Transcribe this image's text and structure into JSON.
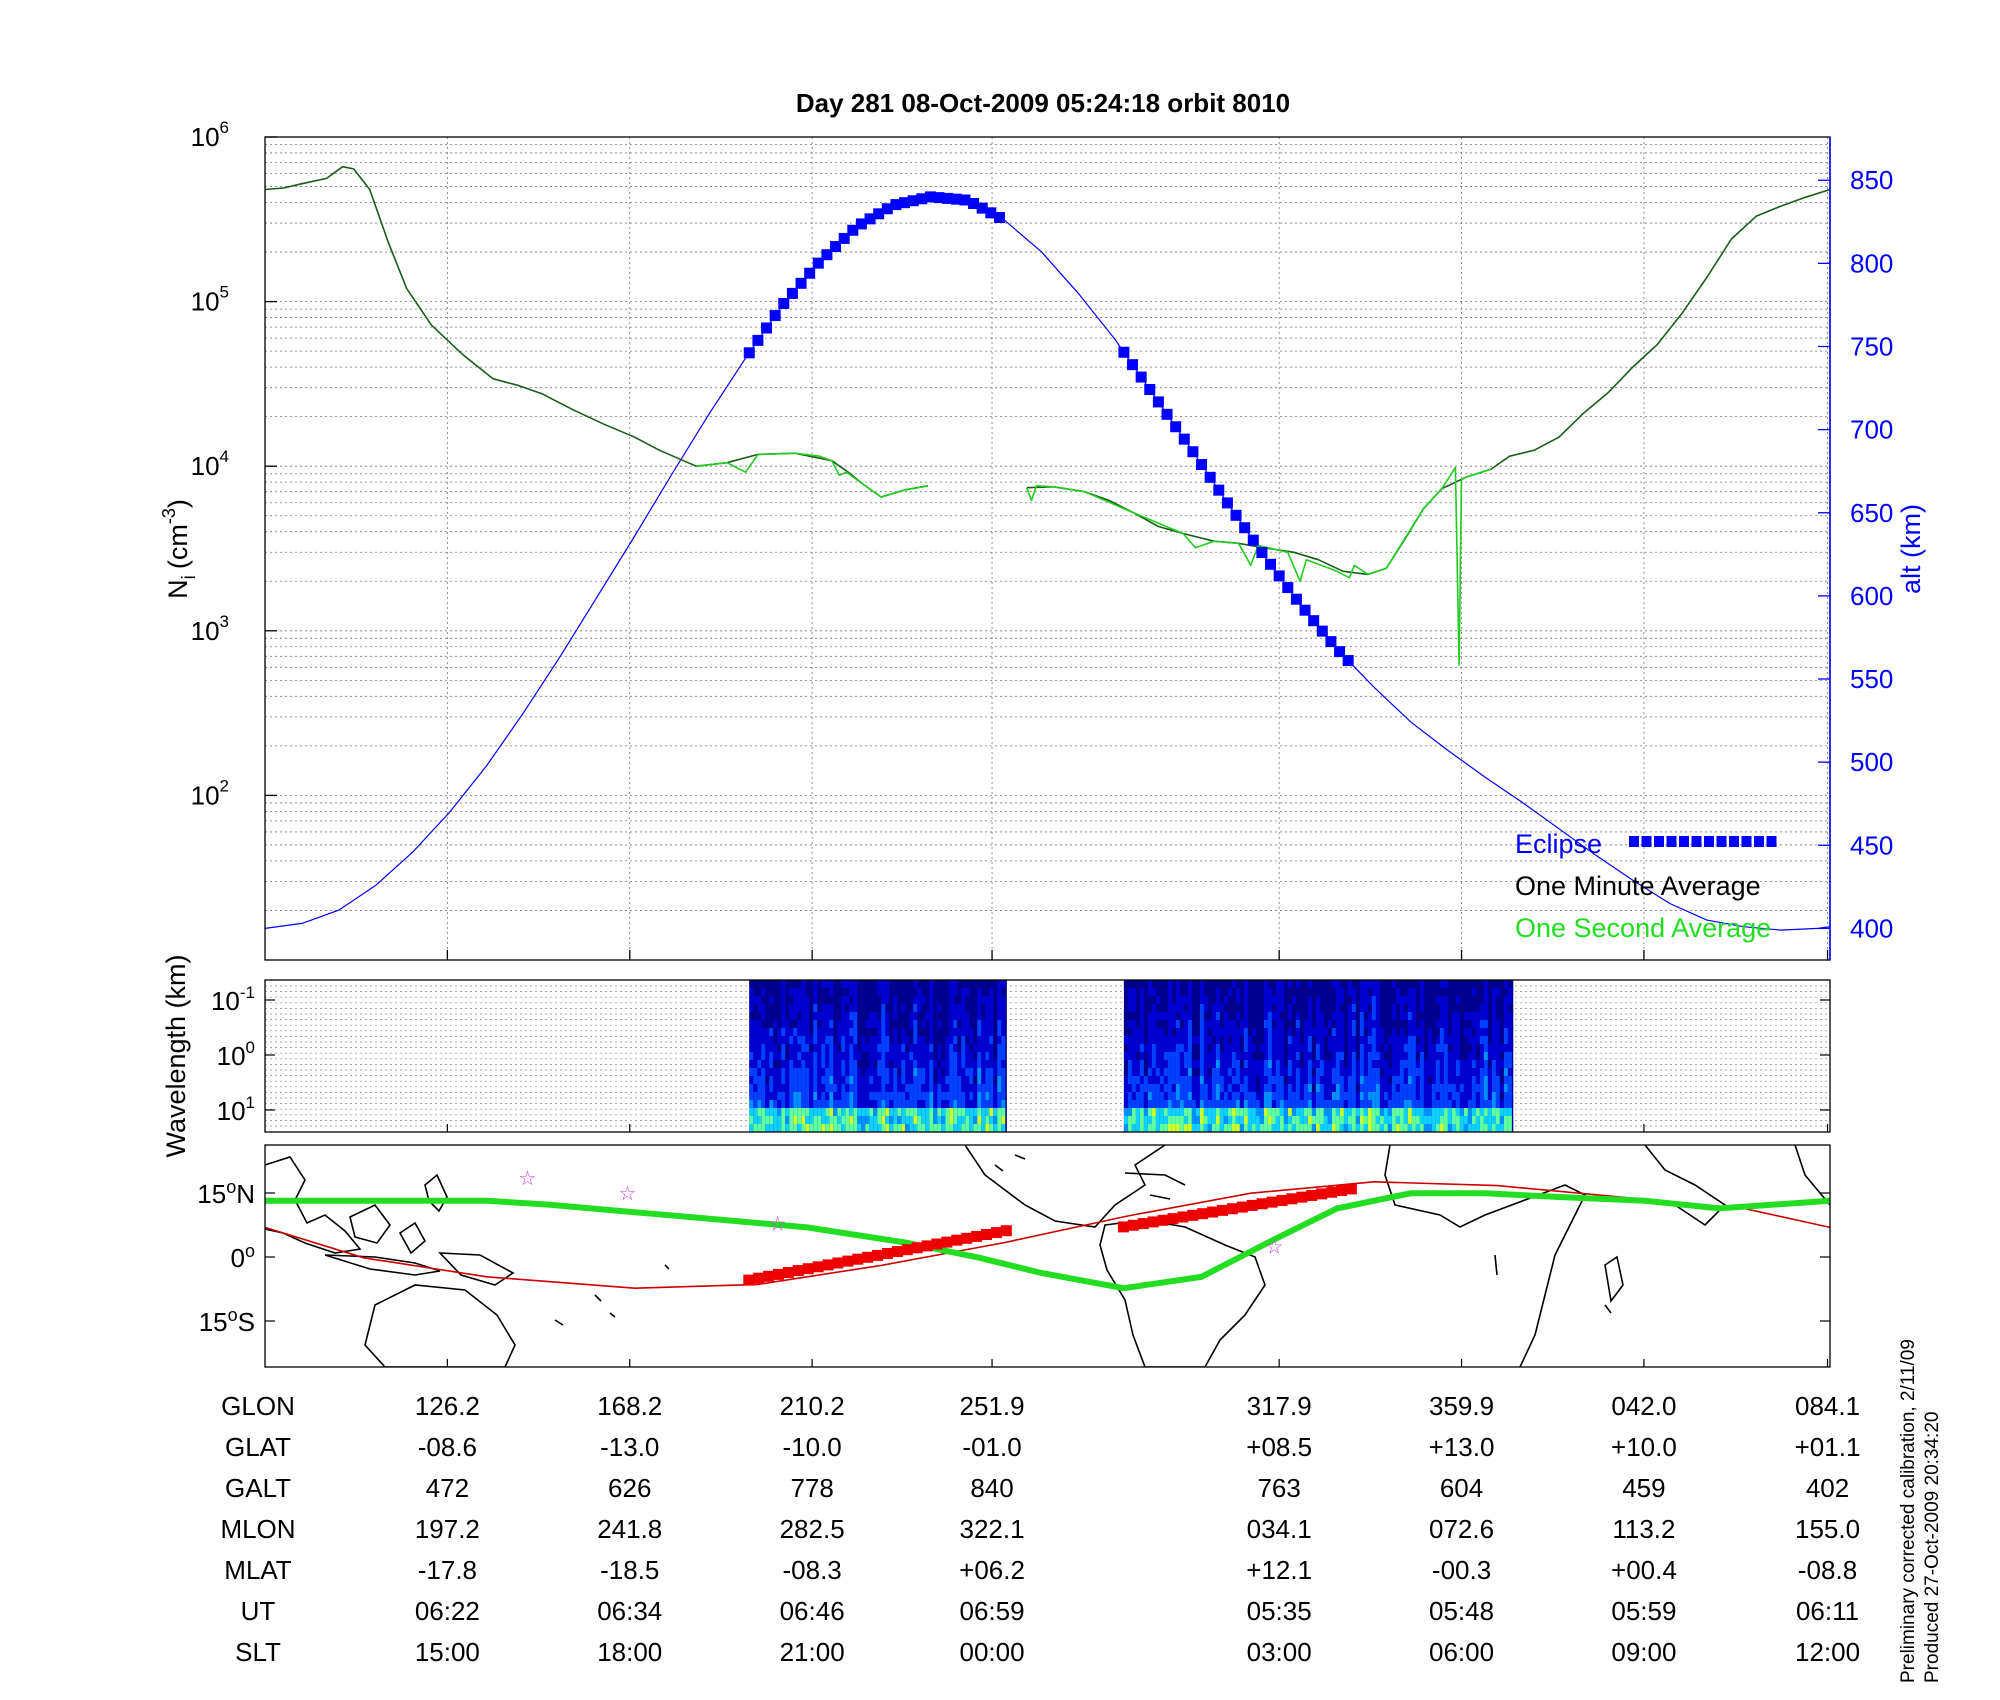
{
  "title": "Day 281  08-Oct-2009 05:24:18   orbit 8010",
  "colors": {
    "one_minute": "#1a5c1a",
    "one_second": "#22cc22",
    "altitude": "#0000ff",
    "eclipse": "#0000ff",
    "track_map": "#22dd22",
    "dip_equator": "#cc0000",
    "map_eclipse": "#ee0000",
    "stars": "#cc44cc"
  },
  "chart_data": [
    {
      "type": "line",
      "name": "density",
      "ylabel": "N_i (cm^-3)",
      "ylabel_main": "N",
      "ylabel_sub": "i",
      "ylabel_unit": "(cm",
      "ylabel_exp": "-3",
      "ylabel_close": ")",
      "y2label": "alt (km)",
      "y_scale": "log",
      "ylim": [
        10,
        1000000
      ],
      "y_ticks": [
        {
          "base": "10",
          "exp": "2",
          "value": 100
        },
        {
          "base": "10",
          "exp": "3",
          "value": 1000
        },
        {
          "base": "10",
          "exp": "4",
          "value": 10000
        },
        {
          "base": "10",
          "exp": "5",
          "value": 100000
        },
        {
          "base": "10",
          "exp": "6",
          "value": 1000000
        }
      ],
      "y2lim": [
        381,
        876
      ],
      "y2_ticks": [
        "400",
        "450",
        "500",
        "550",
        "600",
        "650",
        "700",
        "750",
        "800",
        "850"
      ],
      "legend": {
        "placement": "bottom-right",
        "eclipse": "Eclipse",
        "one_minute": "One Minute Average",
        "one_second": "One Second Average"
      },
      "series": [
        {
          "name": "One Minute Average",
          "segments": [
            [
              [
                0,
                480000
              ],
              [
                15,
                490000
              ],
              [
                30,
                520000
              ],
              [
                50,
                560000
              ],
              [
                63,
                660000
              ],
              [
                72,
                640000
              ],
              [
                85,
                480000
              ],
              [
                100,
                230000
              ],
              [
                115,
                120000
              ],
              [
                135,
                72000
              ],
              [
                160,
                48000
              ],
              [
                185,
                34000
              ],
              [
                205,
                31000
              ],
              [
                225,
                27500
              ],
              [
                250,
                22000
              ],
              [
                275,
                18000
              ],
              [
                300,
                15000
              ],
              [
                320,
                12500
              ],
              [
                350,
                10000
              ],
              [
                375,
                10500
              ],
              [
                400,
                11800
              ],
              [
                430,
                12000
              ],
              [
                460,
                10800
              ],
              [
                475,
                9000
              ],
              [
                485,
                7800
              ],
              [
                500,
                6500
              ],
              [
                520,
                7200
              ],
              [
                538,
                7600
              ]
            ],
            [
              [
                618,
                7400
              ],
              [
                640,
                7500
              ],
              [
                665,
                7000
              ],
              [
                685,
                6200
              ],
              [
                705,
                5200
              ],
              [
                725,
                4300
              ],
              [
                745,
                3900
              ],
              [
                770,
                3500
              ],
              [
                790,
                3400
              ],
              [
                810,
                3200
              ],
              [
                835,
                3000
              ],
              [
                855,
                2700
              ],
              [
                875,
                2300
              ],
              [
                895,
                2200
              ],
              [
                910,
                2400
              ],
              [
                925,
                3600
              ],
              [
                940,
                5500
              ],
              [
                955,
                7300
              ],
              [
                975,
                8600
              ],
              [
                995,
                9600
              ],
              [
                1010,
                11500
              ],
              [
                1030,
                12500
              ],
              [
                1050,
                15000
              ],
              [
                1070,
                21000
              ],
              [
                1090,
                28000
              ],
              [
                1110,
                40000
              ],
              [
                1130,
                55000
              ],
              [
                1150,
                85000
              ],
              [
                1170,
                140000
              ],
              [
                1190,
                240000
              ],
              [
                1210,
                330000
              ],
              [
                1230,
                380000
              ],
              [
                1250,
                430000
              ],
              [
                1270,
                480000
              ]
            ]
          ]
        },
        {
          "name": "One Second Average",
          "segments": [
            [
              [
                350,
                10000
              ],
              [
                375,
                10500
              ],
              [
                390,
                9200
              ],
              [
                400,
                11800
              ],
              [
                430,
                12000
              ],
              [
                450,
                11500
              ],
              [
                460,
                10800
              ],
              [
                466,
                8800
              ],
              [
                472,
                9200
              ],
              [
                485,
                7800
              ],
              [
                500,
                6500
              ],
              [
                520,
                7200
              ],
              [
                538,
                7600
              ]
            ],
            [
              [
                618,
                7400
              ],
              [
                622,
                6200
              ],
              [
                626,
                7600
              ],
              [
                640,
                7500
              ],
              [
                665,
                7000
              ],
              [
                705,
                5200
              ],
              [
                745,
                3900
              ],
              [
                755,
                3200
              ],
              [
                770,
                3500
              ],
              [
                790,
                3400
              ],
              [
                800,
                2500
              ],
              [
                806,
                3300
              ],
              [
                830,
                3000
              ],
              [
                840,
                2000
              ],
              [
                845,
                2700
              ],
              [
                870,
                2300
              ],
              [
                880,
                2100
              ],
              [
                884,
                2500
              ],
              [
                895,
                2200
              ],
              [
                910,
                2400
              ],
              [
                940,
                5500
              ],
              [
                955,
                7300
              ],
              [
                966,
                9800
              ],
              [
                969,
                620
              ],
              [
                971,
                8300
              ],
              [
                975,
                8600
              ],
              [
                995,
                9600
              ]
            ]
          ]
        }
      ],
      "altitude_km": {
        "x": [
          0,
          30,
          60,
          90,
          120,
          150,
          180,
          210,
          240,
          270,
          300,
          330,
          360,
          390,
          420,
          450,
          480,
          510,
          540,
          570,
          600,
          630,
          660,
          690,
          720,
          750,
          780,
          810,
          840,
          870,
          900,
          930,
          960,
          990,
          1020,
          1050,
          1080,
          1110,
          1140,
          1170,
          1200,
          1230,
          1260,
          1270
        ],
        "y": [
          400,
          403,
          411,
          426,
          446,
          470,
          498,
          530,
          564,
          600,
          636,
          673,
          709,
          743,
          775,
          801,
          822,
          835,
          840,
          838,
          826,
          807,
          782,
          754,
          722,
          690,
          657,
          625,
          595,
          568,
          545,
          524,
          507,
          491,
          476,
          460,
          444,
          429,
          415,
          405,
          401,
          399,
          400,
          401
        ]
      },
      "eclipse_segments": [
        [
          393,
          602
        ],
        [
          697,
          882
        ]
      ]
    },
    {
      "type": "heatmap",
      "name": "spectrogram",
      "ylabel": "Wavelength (km)",
      "y_ticks": [
        {
          "base": "10",
          "exp": "-1"
        },
        {
          "base": "10",
          "exp": "0"
        },
        {
          "base": "10",
          "exp": "1"
        }
      ],
      "active_segments": [
        [
          393,
          602
        ],
        [
          697,
          1013
        ]
      ],
      "colormap": [
        "#00008f",
        "#0000d0",
        "#0040ff",
        "#0090ff",
        "#10d0ff",
        "#60ff9f",
        "#c8ff30"
      ]
    },
    {
      "type": "map",
      "name": "ground track",
      "lat_labels": [
        {
          "deg": "15",
          "hem": "N"
        },
        {
          "deg": "0",
          "hem": ""
        },
        {
          "deg": "15",
          "hem": "S"
        }
      ],
      "green_track": [
        [
          0,
          9
        ],
        [
          100,
          9
        ],
        [
          180,
          9
        ],
        [
          230,
          8
        ],
        [
          300,
          6
        ],
        [
          370,
          4
        ],
        [
          440,
          2
        ],
        [
          520,
          -2
        ],
        [
          580,
          -6
        ],
        [
          630,
          -10
        ],
        [
          697,
          -14
        ],
        [
          760,
          -11
        ],
        [
          820,
          -1
        ],
        [
          870,
          7
        ],
        [
          930,
          11
        ],
        [
          990,
          11
        ],
        [
          1050,
          10
        ],
        [
          1120,
          9
        ],
        [
          1180,
          7
        ],
        [
          1270,
          9
        ]
      ],
      "red_dip_equator": [
        [
          0,
          2
        ],
        [
          80,
          -6
        ],
        [
          180,
          -11
        ],
        [
          300,
          -14
        ],
        [
          400,
          -13
        ],
        [
          500,
          -8
        ],
        [
          600,
          -2
        ],
        [
          700,
          5
        ],
        [
          800,
          11
        ],
        [
          900,
          14
        ],
        [
          1000,
          13
        ],
        [
          1100,
          10
        ],
        [
          1200,
          7
        ],
        [
          1270,
          2
        ]
      ],
      "red_eclipse_track": [
        [
          393,
          -12
        ],
        [
          602,
          1
        ],
        [
          697,
          2
        ],
        [
          882,
          12
        ]
      ],
      "stars": [
        [
          213,
          15
        ],
        [
          294,
          11
        ],
        [
          416,
          3
        ],
        [
          819,
          -3
        ]
      ]
    }
  ],
  "coordinate_table": {
    "rows": [
      {
        "label": "GLON",
        "values": [
          "126.2",
          "168.2",
          "210.2",
          "251.9",
          "317.9",
          "359.9",
          "042.0",
          "084.1"
        ]
      },
      {
        "label": "GLAT",
        "values": [
          "-08.6",
          "-13.0",
          "-10.0",
          "-01.0",
          "+08.5",
          "+13.0",
          "+10.0",
          "+01.1"
        ]
      },
      {
        "label": "GALT",
        "values": [
          "472",
          "626",
          "778",
          "840",
          "763",
          "604",
          "459",
          "402"
        ]
      },
      {
        "label": "MLON",
        "values": [
          "197.2",
          "241.8",
          "282.5",
          "322.1",
          "034.1",
          "072.6",
          "113.2",
          "155.0"
        ]
      },
      {
        "label": "MLAT",
        "values": [
          "-17.8",
          "-18.5",
          "-08.3",
          "+06.2",
          "+12.1",
          "-00.3",
          "+00.4",
          "-08.8"
        ]
      },
      {
        "label": "UT",
        "values": [
          "06:22",
          "06:34",
          "06:46",
          "06:59",
          "05:35",
          "05:48",
          "05:59",
          "06:11"
        ]
      },
      {
        "label": "SLT",
        "values": [
          "15:00",
          "18:00",
          "21:00",
          "00:00",
          "03:00",
          "06:00",
          "09:00",
          "12:00"
        ]
      }
    ],
    "column_x": [
      148,
      296,
      444,
      590,
      823,
      971,
      1119,
      1268
    ]
  },
  "footnote": {
    "line1": "Preliminary corrected calibration, 2/11/09",
    "line2": "Produced 27-Oct-2009 20:34:20"
  }
}
